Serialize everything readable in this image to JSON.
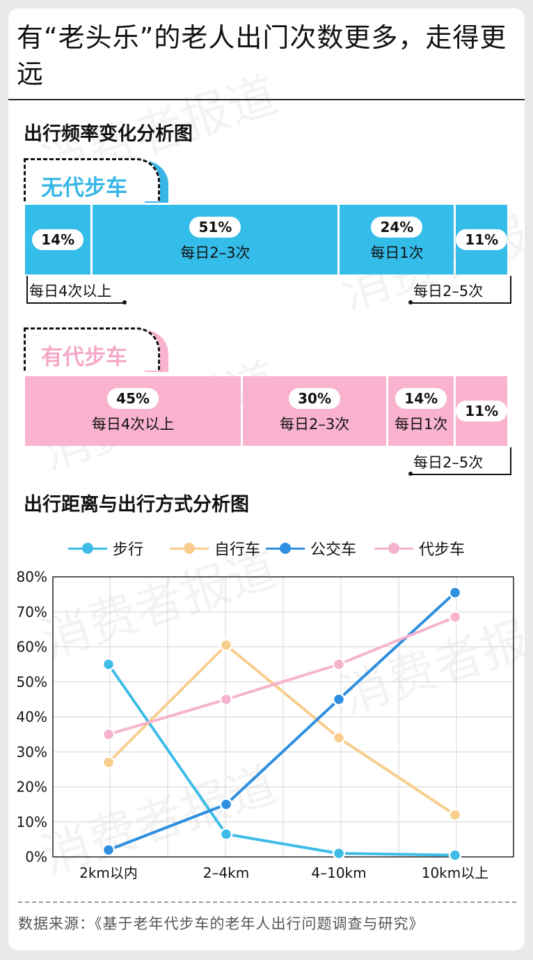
{
  "title": "有“老头乐”的老人出门次数更多，走得更远",
  "frequency_section": {
    "title": "出行频率变化分析图",
    "no_scooter": {
      "tab_label": "无代步车",
      "segments": [
        {
          "pct": "14%",
          "label": ""
        },
        {
          "pct": "51%",
          "label": "每日2–3次"
        },
        {
          "pct": "24%",
          "label": "每日1次"
        },
        {
          "pct": "11%",
          "label": ""
        }
      ],
      "left_note": "每日4次以上",
      "right_note": "每日2–5次"
    },
    "with_scooter": {
      "tab_label": "有代步车",
      "segments": [
        {
          "pct": "45%",
          "label": "每日4次以上"
        },
        {
          "pct": "30%",
          "label": "每日2–3次"
        },
        {
          "pct": "14%",
          "label": "每日1次"
        },
        {
          "pct": "11%",
          "label": ""
        }
      ],
      "right_note": "每日2–5次"
    }
  },
  "distance_section": {
    "title": "出行距离与出行方式分析图"
  },
  "chart_data": [
    {
      "type": "bar",
      "title": "无代步车",
      "categories": [
        "每日4次以上",
        "每日2–3次",
        "每日1次",
        "每日2–5次"
      ],
      "values": [
        14,
        51,
        24,
        11
      ],
      "unit": "%",
      "color": "#35bdea"
    },
    {
      "type": "bar",
      "title": "有代步车",
      "categories": [
        "每日4次以上",
        "每日2–3次",
        "每日1次",
        "每日2–5次"
      ],
      "values": [
        45,
        30,
        14,
        11
      ],
      "unit": "%",
      "color": "#f9b3ce"
    },
    {
      "type": "line",
      "title": "出行距离与出行方式分析图",
      "categories": [
        "2km以内",
        "2–4km",
        "4–10km",
        "10km以上"
      ],
      "ylim": [
        0,
        80
      ],
      "yticks": [
        "0%",
        "10%",
        "20%",
        "30%",
        "40%",
        "50%",
        "60%",
        "70%",
        "80%"
      ],
      "grid": true,
      "legend": "top",
      "series": [
        {
          "name": "步行",
          "color": "#3dbce8",
          "values": [
            55,
            6.5,
            1,
            0.5
          ]
        },
        {
          "name": "自行车",
          "color": "#f8cd8d",
          "values": [
            27,
            60.5,
            34,
            12
          ]
        },
        {
          "name": "公交车",
          "color": "#2e8fe0",
          "values": [
            2,
            15,
            45,
            75.5
          ]
        },
        {
          "name": "代步车",
          "color": "#f6b3cd",
          "values": [
            35,
            45,
            55,
            68.5
          ]
        }
      ]
    }
  ],
  "source": "数据来源：《基于老年代步车的老年人出行问题调查与研究》",
  "watermark": "消费者报道"
}
